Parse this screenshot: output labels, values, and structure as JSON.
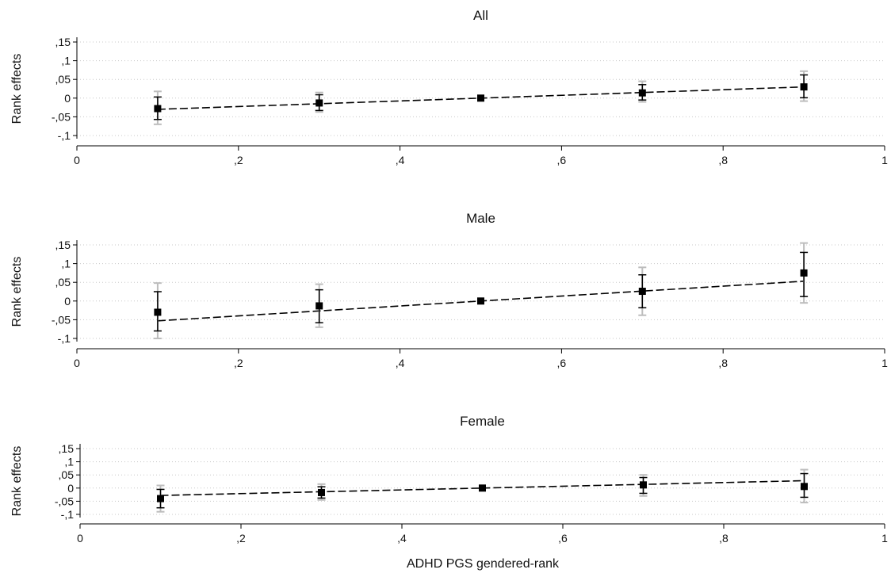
{
  "colors": {
    "line": "#000000",
    "marker": "#000000",
    "ci_inner": "#000000",
    "ci_outer": "#bdbdbd",
    "grid": "#c8c8c8",
    "axis": "#000000"
  },
  "chart_data": [
    {
      "type": "scatter",
      "title": "All",
      "xlabel": "",
      "ylabel": "Rank effects",
      "xlim": [
        0,
        1
      ],
      "ylim": [
        -0.1,
        0.15
      ],
      "x_ticks": [
        "0",
        ",2",
        ",4",
        ",6",
        ",8",
        "1"
      ],
      "x_tick_values": [
        0,
        0.2,
        0.4,
        0.6,
        0.8,
        1
      ],
      "y_ticks": [
        ",15",
        ",1",
        ",05",
        "0",
        "-,05",
        "-,1"
      ],
      "y_tick_values": [
        0.15,
        0.1,
        0.05,
        0,
        -0.05,
        -0.1
      ],
      "grid": true,
      "x": [
        0.1,
        0.3,
        0.5,
        0.7,
        0.9
      ],
      "series": [
        {
          "y": [
            -0.028,
            -0.013,
            0.0,
            0.014,
            0.03
          ],
          "ci_inner": [
            [
              -0.057,
              0.003
            ],
            [
              -0.033,
              0.009
            ],
            [
              0,
              0
            ],
            [
              -0.005,
              0.036
            ],
            [
              0.001,
              0.062
            ]
          ],
          "ci_outer": [
            [
              -0.07,
              0.018
            ],
            [
              -0.037,
              0.015
            ],
            [
              0,
              0
            ],
            [
              -0.01,
              0.045
            ],
            [
              -0.008,
              0.072
            ]
          ]
        }
      ],
      "fit_line": {
        "x": [
          0.1,
          0.9
        ],
        "y": [
          -0.03,
          0.03
        ]
      }
    },
    {
      "type": "scatter",
      "title": "Male",
      "xlabel": "",
      "ylabel": "Rank effects",
      "xlim": [
        0,
        1
      ],
      "ylim": [
        -0.1,
        0.15
      ],
      "x_ticks": [
        "0",
        ",2",
        ",4",
        ",6",
        ",8",
        "1"
      ],
      "x_tick_values": [
        0,
        0.2,
        0.4,
        0.6,
        0.8,
        1
      ],
      "y_ticks": [
        ",15",
        ",1",
        ",05",
        "0",
        "-,05",
        "-,1"
      ],
      "y_tick_values": [
        0.15,
        0.1,
        0.05,
        0,
        -0.05,
        -0.1
      ],
      "grid": true,
      "x": [
        0.1,
        0.3,
        0.5,
        0.7,
        0.9
      ],
      "series": [
        {
          "y": [
            -0.03,
            -0.013,
            0.0,
            0.026,
            0.075
          ],
          "ci_inner": [
            [
              -0.08,
              0.025
            ],
            [
              -0.058,
              0.03
            ],
            [
              0,
              0
            ],
            [
              -0.018,
              0.07
            ],
            [
              0.012,
              0.13
            ]
          ],
          "ci_outer": [
            [
              -0.1,
              0.048
            ],
            [
              -0.07,
              0.045
            ],
            [
              0,
              0
            ],
            [
              -0.038,
              0.09
            ],
            [
              -0.005,
              0.155
            ]
          ]
        }
      ],
      "fit_line": {
        "x": [
          0.1,
          0.9
        ],
        "y": [
          -0.053,
          0.053
        ]
      }
    },
    {
      "type": "scatter",
      "title": "Female",
      "xlabel": "ADHD PGS gendered-rank",
      "ylabel": "Rank effects",
      "xlim": [
        0,
        1
      ],
      "ylim": [
        -0.1,
        0.15
      ],
      "x_ticks": [
        "0",
        ",2",
        ",4",
        ",6",
        ",8",
        "1"
      ],
      "x_tick_values": [
        0,
        0.2,
        0.4,
        0.6,
        0.8,
        1
      ],
      "y_ticks": [
        ",15",
        ",1",
        ",05",
        "0",
        "-,05",
        "-,1"
      ],
      "y_tick_values": [
        0.15,
        0.1,
        0.05,
        0,
        -0.05,
        -0.1
      ],
      "grid": true,
      "x": [
        0.1,
        0.3,
        0.5,
        0.7,
        0.9
      ],
      "series": [
        {
          "y": [
            -0.04,
            -0.017,
            0.0,
            0.012,
            0.006
          ],
          "ci_inner": [
            [
              -0.075,
              -0.005
            ],
            [
              -0.038,
              0.005
            ],
            [
              0,
              0
            ],
            [
              -0.02,
              0.04
            ],
            [
              -0.035,
              0.055
            ]
          ],
          "ci_outer": [
            [
              -0.09,
              0.01
            ],
            [
              -0.045,
              0.015
            ],
            [
              0,
              0
            ],
            [
              -0.03,
              0.05
            ],
            [
              -0.055,
              0.07
            ]
          ]
        }
      ],
      "fit_line": {
        "x": [
          0.1,
          0.9
        ],
        "y": [
          -0.028,
          0.028
        ]
      }
    }
  ]
}
